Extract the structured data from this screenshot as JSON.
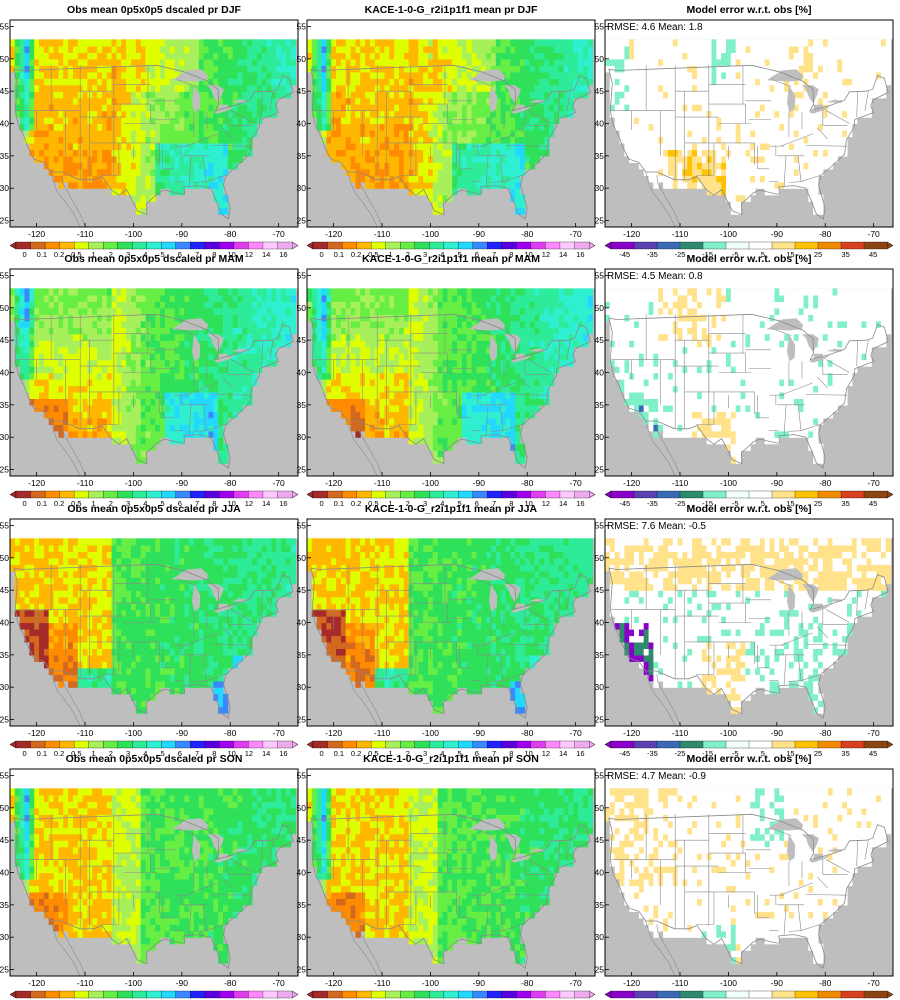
{
  "figure": {
    "colors": {
      "land_default": "#9df04a",
      "ocean_gray": "#bebebe",
      "border_line": "#8a8a8a",
      "frame": "#000000"
    },
    "precip_palette": [
      "#a52a2a",
      "#d2691e",
      "#ff8c00",
      "#ffb700",
      "#dfff00",
      "#a8f05b",
      "#66ee44",
      "#2ee05a",
      "#2eeb9a",
      "#2ef0d0",
      "#22d8ff",
      "#3a88ff",
      "#2222ff",
      "#5a00e0",
      "#a000f0",
      "#e03cf0",
      "#ff88ff",
      "#ffc8ff",
      "#eeaaee"
    ],
    "error_palette": [
      "#8a00c8",
      "#5a40b0",
      "#3a6ab5",
      "#2e8a6e",
      "#7ff0c8",
      "#f0fff8",
      "#ffffff",
      "#ffe28a",
      "#ffc200",
      "#f08a00",
      "#d84020",
      "#8b4513"
    ]
  },
  "chart_data": [
    {
      "type": "heatmap",
      "row": "DJF",
      "col": "obs",
      "title": "Obs mean 0p5x0p5 dscaled pr DJF",
      "x_ticks": [
        "-120",
        "-110",
        "-100",
        "-90",
        "-80",
        "-70"
      ],
      "y_ticks": [
        "25",
        "30",
        "35",
        "40",
        "45",
        "50",
        "55"
      ],
      "colorbar_ticks": [
        "0",
        "0.1",
        "0.2",
        "0.5",
        "1",
        "2",
        "3",
        "4",
        "5",
        "6",
        "7",
        "8",
        "10",
        "12",
        "14",
        "16"
      ]
    },
    {
      "type": "heatmap",
      "row": "DJF",
      "col": "model",
      "title": "KACE-1-0-G_r2i1p1f1 mean pr DJF",
      "x_ticks": [
        "-120",
        "-110",
        "-100",
        "-90",
        "-80",
        "-70"
      ],
      "y_ticks": [
        "25",
        "30",
        "35",
        "40",
        "45",
        "50",
        "55"
      ],
      "colorbar_ticks": [
        "0",
        "0.1",
        "0.2",
        "0.5",
        "1",
        "2",
        "3",
        "4",
        "5",
        "6",
        "7",
        "8",
        "10",
        "12",
        "14",
        "16"
      ]
    },
    {
      "type": "heatmap",
      "row": "DJF",
      "col": "error",
      "title": "Model error w.r.t. obs [%]",
      "stats": "RMSE: 4.6  Mean: 1.8",
      "rmse": 4.6,
      "mean": 1.8,
      "x_ticks": [
        "-120",
        "-110",
        "-100",
        "-90",
        "-80",
        "-70"
      ],
      "y_ticks": [
        "25",
        "30",
        "35",
        "40",
        "45",
        "50",
        "55"
      ],
      "colorbar_ticks": [
        "-45",
        "-35",
        "-25",
        "-15",
        "-5",
        "5",
        "15",
        "25",
        "35",
        "45"
      ]
    },
    {
      "type": "heatmap",
      "row": "MAM",
      "col": "obs",
      "title": "Obs mean 0p5x0p5 dscaled pr MAM",
      "x_ticks": [
        "-120",
        "-110",
        "-100",
        "-90",
        "-80",
        "-70"
      ],
      "y_ticks": [
        "25",
        "30",
        "35",
        "40",
        "45",
        "50",
        "55"
      ],
      "colorbar_ticks": [
        "0",
        "0.1",
        "0.2",
        "0.5",
        "1",
        "2",
        "3",
        "4",
        "5",
        "6",
        "7",
        "8",
        "10",
        "12",
        "14",
        "16"
      ]
    },
    {
      "type": "heatmap",
      "row": "MAM",
      "col": "model",
      "title": "KACE-1-0-G_r2i1p1f1 mean pr MAM",
      "x_ticks": [
        "-120",
        "-110",
        "-100",
        "-90",
        "-80",
        "-70"
      ],
      "y_ticks": [
        "25",
        "30",
        "35",
        "40",
        "45",
        "50",
        "55"
      ],
      "colorbar_ticks": [
        "0",
        "0.1",
        "0.2",
        "0.5",
        "1",
        "2",
        "3",
        "4",
        "5",
        "6",
        "7",
        "8",
        "10",
        "12",
        "14",
        "16"
      ]
    },
    {
      "type": "heatmap",
      "row": "MAM",
      "col": "error",
      "title": "Model error w.r.t. obs [%]",
      "stats": "RMSE: 4.5  Mean: 0.8",
      "rmse": 4.5,
      "mean": 0.8,
      "x_ticks": [
        "-120",
        "-110",
        "-100",
        "-90",
        "-80",
        "-70"
      ],
      "y_ticks": [
        "25",
        "30",
        "35",
        "40",
        "45",
        "50",
        "55"
      ],
      "colorbar_ticks": [
        "-45",
        "-35",
        "-25",
        "-15",
        "-5",
        "5",
        "15",
        "25",
        "35",
        "45"
      ]
    },
    {
      "type": "heatmap",
      "row": "JJA",
      "col": "obs",
      "title": "Obs mean 0p5x0p5 dscaled pr JJA",
      "x_ticks": [
        "-120",
        "-110",
        "-100",
        "-90",
        "-80",
        "-70"
      ],
      "y_ticks": [
        "25",
        "30",
        "35",
        "40",
        "45",
        "50",
        "55"
      ],
      "colorbar_ticks": [
        "0",
        "0.1",
        "0.2",
        "0.5",
        "1",
        "2",
        "3",
        "4",
        "5",
        "6",
        "7",
        "8",
        "10",
        "12",
        "14",
        "16"
      ]
    },
    {
      "type": "heatmap",
      "row": "JJA",
      "col": "model",
      "title": "KACE-1-0-G_r2i1p1f1 mean pr JJA",
      "x_ticks": [
        "-120",
        "-110",
        "-100",
        "-90",
        "-80",
        "-70"
      ],
      "y_ticks": [
        "25",
        "30",
        "35",
        "40",
        "45",
        "50",
        "55"
      ],
      "colorbar_ticks": [
        "0",
        "0.1",
        "0.2",
        "0.5",
        "1",
        "2",
        "3",
        "4",
        "5",
        "6",
        "7",
        "8",
        "10",
        "12",
        "14",
        "16"
      ]
    },
    {
      "type": "heatmap",
      "row": "JJA",
      "col": "error",
      "title": "Model error w.r.t. obs [%]",
      "stats": "RMSE: 7.6  Mean: -0.5",
      "rmse": 7.6,
      "mean": -0.5,
      "x_ticks": [
        "-120",
        "-110",
        "-100",
        "-90",
        "-80",
        "-70"
      ],
      "y_ticks": [
        "25",
        "30",
        "35",
        "40",
        "45",
        "50",
        "55"
      ],
      "colorbar_ticks": [
        "-45",
        "-35",
        "-25",
        "-15",
        "-5",
        "5",
        "15",
        "25",
        "35",
        "45"
      ]
    },
    {
      "type": "heatmap",
      "row": "SON",
      "col": "obs",
      "title": "Obs mean 0p5x0p5 dscaled pr SON",
      "x_ticks": [
        "-120",
        "-110",
        "-100",
        "-90",
        "-80",
        "-70"
      ],
      "y_ticks": [
        "25",
        "30",
        "35",
        "40",
        "45",
        "50",
        "55"
      ],
      "colorbar_ticks": [
        "0",
        "0.1",
        "0.2",
        "0.5",
        "1",
        "2",
        "3",
        "4",
        "5",
        "6",
        "7",
        "8",
        "10",
        "12",
        "14",
        "16"
      ]
    },
    {
      "type": "heatmap",
      "row": "SON",
      "col": "model",
      "title": "KACE-1-0-G_r2i1p1f1 mean pr SON",
      "x_ticks": [
        "-120",
        "-110",
        "-100",
        "-90",
        "-80",
        "-70"
      ],
      "y_ticks": [
        "25",
        "30",
        "35",
        "40",
        "45",
        "50",
        "55"
      ],
      "colorbar_ticks": [
        "0",
        "0.1",
        "0.2",
        "0.5",
        "1",
        "2",
        "3",
        "4",
        "5",
        "6",
        "7",
        "8",
        "10",
        "12",
        "14",
        "16"
      ]
    },
    {
      "type": "heatmap",
      "row": "SON",
      "col": "error",
      "title": "Model error w.r.t. obs [%]",
      "stats": "RMSE: 4.7  Mean: -0.9",
      "rmse": 4.7,
      "mean": -0.9,
      "x_ticks": [
        "-120",
        "-110",
        "-100",
        "-90",
        "-80",
        "-70"
      ],
      "y_ticks": [
        "25",
        "30",
        "35",
        "40",
        "45",
        "50",
        "55"
      ],
      "colorbar_ticks": [
        "-45",
        "-35",
        "-25",
        "-15",
        "-5",
        "5",
        "15",
        "25",
        "35",
        "45"
      ]
    }
  ]
}
